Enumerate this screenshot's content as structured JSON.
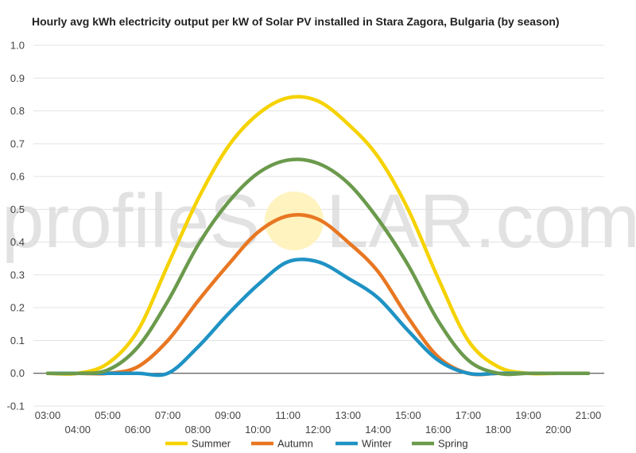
{
  "chart_data": {
    "type": "line",
    "title": "Hourly avg kWh electricity output per kW of Solar PV installed in Stara Zagora, Bulgaria (by season)",
    "xlabel": "",
    "ylabel": "",
    "ylim": [
      -0.1,
      1.0
    ],
    "yticks": [
      "1.0",
      "0.9",
      "0.8",
      "0.7",
      "0.6",
      "0.5",
      "0.4",
      "0.3",
      "0.2",
      "0.1",
      "0.0",
      "-0.1"
    ],
    "ytick_values": [
      1.0,
      0.9,
      0.8,
      0.7,
      0.6,
      0.5,
      0.4,
      0.3,
      0.2,
      0.1,
      0.0,
      -0.1
    ],
    "x": [
      "03:00",
      "04:00",
      "05:00",
      "06:00",
      "07:00",
      "08:00",
      "09:00",
      "10:00",
      "11:00",
      "12:00",
      "13:00",
      "14:00",
      "15:00",
      "16:00",
      "17:00",
      "18:00",
      "19:00",
      "20:00",
      "21:00"
    ],
    "grid": true,
    "legend_position": "bottom",
    "watermark": {
      "pre": "profileS",
      "post": "LAR.com"
    },
    "series": [
      {
        "name": "Summer",
        "color": "#f5d200",
        "values": [
          0.0,
          0.0,
          0.03,
          0.13,
          0.33,
          0.53,
          0.69,
          0.79,
          0.84,
          0.83,
          0.76,
          0.66,
          0.5,
          0.29,
          0.1,
          0.02,
          0.0,
          0.0,
          0.0
        ]
      },
      {
        "name": "Autumn",
        "color": "#e87722",
        "values": [
          0.0,
          0.0,
          0.0,
          0.02,
          0.1,
          0.22,
          0.33,
          0.43,
          0.48,
          0.47,
          0.4,
          0.31,
          0.17,
          0.05,
          0.0,
          0.0,
          0.0,
          0.0,
          0.0
        ]
      },
      {
        "name": "Winter",
        "color": "#1f92c4",
        "values": [
          0.0,
          0.0,
          0.0,
          0.0,
          0.0,
          0.08,
          0.18,
          0.27,
          0.34,
          0.34,
          0.29,
          0.23,
          0.13,
          0.04,
          0.0,
          0.0,
          0.0,
          0.0,
          0.0
        ]
      },
      {
        "name": "Spring",
        "color": "#6b9a4c",
        "values": [
          0.0,
          0.0,
          0.01,
          0.08,
          0.22,
          0.39,
          0.52,
          0.61,
          0.65,
          0.64,
          0.58,
          0.47,
          0.33,
          0.16,
          0.04,
          0.0,
          0.0,
          0.0,
          0.0
        ]
      }
    ]
  }
}
